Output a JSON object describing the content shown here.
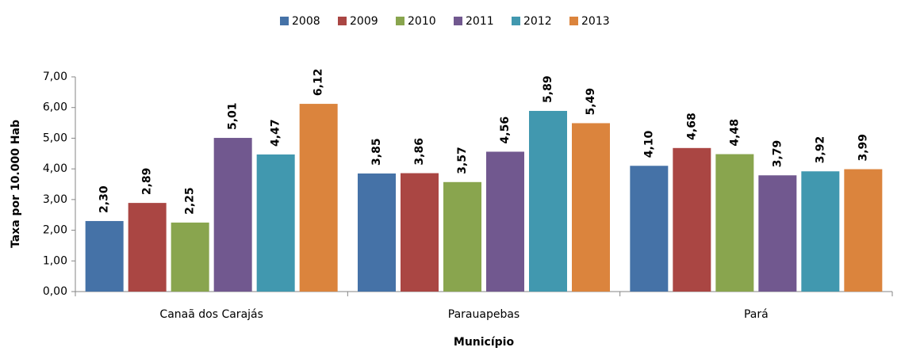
{
  "chart_data": {
    "type": "bar",
    "categories": [
      "Canaã dos Carajás",
      "Parauapebas",
      "Pará"
    ],
    "series": [
      {
        "name": "2008",
        "color": "#4572a7",
        "values": [
          2.3,
          3.85,
          4.1
        ],
        "value_labels": [
          "2,30",
          "3,85",
          "4,10"
        ]
      },
      {
        "name": "2009",
        "color": "#aa4643",
        "values": [
          2.89,
          3.86,
          4.68
        ],
        "value_labels": [
          "2,89",
          "3,86",
          "4,68"
        ]
      },
      {
        "name": "2010",
        "color": "#89a54e",
        "values": [
          2.25,
          3.57,
          4.48
        ],
        "value_labels": [
          "2,25",
          "3,57",
          "4,48"
        ]
      },
      {
        "name": "2011",
        "color": "#71588f",
        "values": [
          5.01,
          4.56,
          3.79
        ],
        "value_labels": [
          "5,01",
          "4,56",
          "3,79"
        ]
      },
      {
        "name": "2012",
        "color": "#4198af",
        "values": [
          4.47,
          5.89,
          3.92
        ],
        "value_labels": [
          "4,47",
          "5,89",
          "3,92"
        ]
      },
      {
        "name": "2013",
        "color": "#db843d",
        "values": [
          6.12,
          5.49,
          3.99
        ],
        "value_labels": [
          "6,12",
          "5,49",
          "3,99"
        ]
      }
    ],
    "xlabel": "Município",
    "ylabel": "Taxa por 10.000 Hab",
    "ylim": [
      0,
      7
    ],
    "yticks": [
      {
        "value": 0,
        "label": "0,00"
      },
      {
        "value": 1,
        "label": "1,00"
      },
      {
        "value": 2,
        "label": "2,00"
      },
      {
        "value": 3,
        "label": "3,00"
      },
      {
        "value": 4,
        "label": "4,00"
      },
      {
        "value": 5,
        "label": "5,00"
      },
      {
        "value": 6,
        "label": "6,00"
      },
      {
        "value": 7,
        "label": "7,00"
      }
    ],
    "legend": "top",
    "grid": false
  }
}
